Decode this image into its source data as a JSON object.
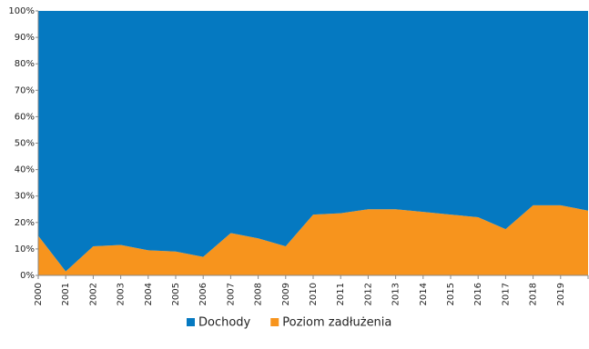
{
  "chart_data": {
    "type": "stacked_area_100",
    "categories": [
      "2000",
      "2001",
      "2002",
      "2003",
      "2004",
      "2005",
      "2006",
      "2007",
      "2008",
      "2009",
      "2010",
      "2011",
      "2012",
      "2013",
      "2014",
      "2015",
      "2016",
      "2017",
      "2018",
      "2019",
      null
    ],
    "series": [
      {
        "name": "Poziom zadłużenia",
        "color": "#f7941d",
        "values": [
          15,
          1.5,
          11,
          11.5,
          9.5,
          9,
          7,
          16,
          14,
          11,
          23,
          23.5,
          25,
          25,
          24,
          23,
          22,
          17.5,
          26.5,
          26.5,
          24.5
        ]
      },
      {
        "name": "Dochody",
        "color": "#0579c1",
        "values": [
          85,
          98.5,
          89,
          88.5,
          90.5,
          91,
          93,
          84,
          86,
          89,
          77,
          76.5,
          75,
          75,
          76,
          77,
          78,
          82.5,
          73.5,
          73.5,
          75.5
        ]
      }
    ],
    "legend_order": [
      "Dochody",
      "Poziom zadłużenia"
    ],
    "ylim": [
      0,
      100
    ],
    "yticks": [
      {
        "value": 0,
        "label": "0%"
      },
      {
        "value": 10,
        "label": "10%"
      },
      {
        "value": 20,
        "label": "20%"
      },
      {
        "value": 30,
        "label": "30%"
      },
      {
        "value": 40,
        "label": "40%"
      },
      {
        "value": 50,
        "label": "50%"
      },
      {
        "value": 60,
        "label": "60%"
      },
      {
        "value": 70,
        "label": "70%"
      },
      {
        "value": 80,
        "label": "80%"
      },
      {
        "value": 90,
        "label": "90%"
      },
      {
        "value": 100,
        "label": "100%"
      }
    ]
  }
}
